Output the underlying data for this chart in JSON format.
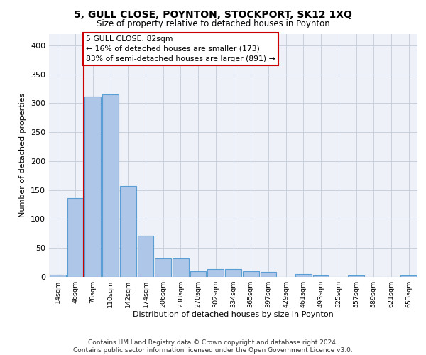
{
  "title1": "5, GULL CLOSE, POYNTON, STOCKPORT, SK12 1XQ",
  "title2": "Size of property relative to detached houses in Poynton",
  "xlabel": "Distribution of detached houses by size in Poynton",
  "ylabel": "Number of detached properties",
  "footer1": "Contains HM Land Registry data © Crown copyright and database right 2024.",
  "footer2": "Contains public sector information licensed under the Open Government Licence v3.0.",
  "annotation_line1": "5 GULL CLOSE: 82sqm",
  "annotation_line2": "← 16% of detached houses are smaller (173)",
  "annotation_line3": "83% of semi-detached houses are larger (891) →",
  "bar_values": [
    4,
    136,
    312,
    315,
    157,
    71,
    32,
    32,
    10,
    13,
    13,
    10,
    8,
    0,
    5,
    3,
    0,
    2,
    0,
    0,
    3
  ],
  "bar_labels": [
    "14sqm",
    "46sqm",
    "78sqm",
    "110sqm",
    "142sqm",
    "174sqm",
    "206sqm",
    "238sqm",
    "270sqm",
    "302sqm",
    "334sqm",
    "365sqm",
    "397sqm",
    "429sqm",
    "461sqm",
    "493sqm",
    "525sqm",
    "557sqm",
    "589sqm",
    "621sqm",
    "653sqm"
  ],
  "bar_color": "#aec6e8",
  "bar_edge_color": "#5a9fd4",
  "grid_color": "#c8d0dc",
  "bg_color": "#eef1f7",
  "annotation_box_edgecolor": "#cc0000",
  "property_line_color": "#cc0000",
  "property_bin_index": 2,
  "ylim": [
    0,
    420
  ],
  "yticks": [
    0,
    50,
    100,
    150,
    200,
    250,
    300,
    350,
    400
  ]
}
